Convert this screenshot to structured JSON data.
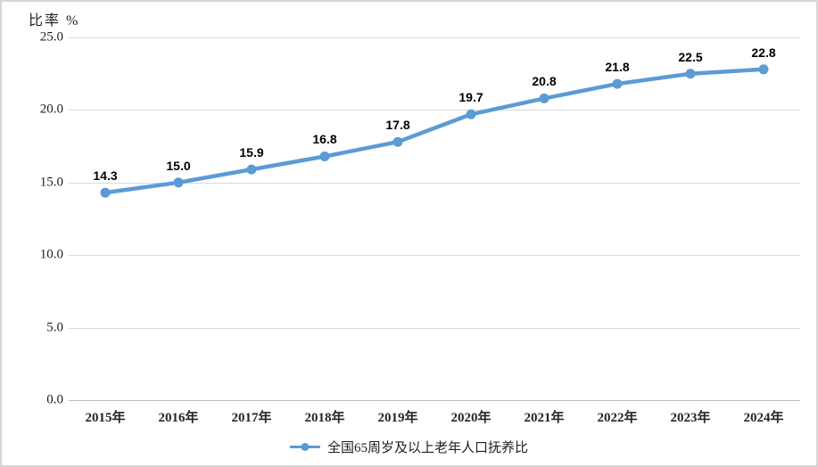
{
  "frame": {
    "background": "#ffffff",
    "border_color": "#d6d6d6"
  },
  "chart_data": {
    "type": "line",
    "title": "比率 %",
    "categories": [
      "2015年",
      "2016年",
      "2017年",
      "2018年",
      "2019年",
      "2020年",
      "2021年",
      "2022年",
      "2023年",
      "2024年"
    ],
    "series": [
      {
        "name": "全国65周岁及以上老年人口抚养比",
        "values": [
          14.3,
          15.0,
          15.9,
          16.8,
          17.8,
          19.7,
          20.8,
          21.8,
          22.5,
          22.8
        ],
        "color": "#5B9BD5"
      }
    ],
    "data_labels": [
      "14.3",
      "15.0",
      "15.9",
      "16.8",
      "17.8",
      "19.7",
      "20.8",
      "21.8",
      "22.5",
      "22.8"
    ],
    "ylabel": "比率 %",
    "xlabel": "",
    "ylim": [
      0,
      25
    ],
    "y_ticks": [
      {
        "value": 0,
        "label": "0.0"
      },
      {
        "value": 5,
        "label": "5.0"
      },
      {
        "value": 10,
        "label": "10.0"
      },
      {
        "value": 15,
        "label": "15.0"
      },
      {
        "value": 20,
        "label": "20.0"
      },
      {
        "value": 25,
        "label": "25.0"
      }
    ],
    "grid": "horizontal",
    "gridline_color": "#d9d9d9",
    "axis_line_color": "#bfbfbf",
    "legend_position": "bottom",
    "legend_label": "全国65周岁及以上老年人口抚养比"
  }
}
